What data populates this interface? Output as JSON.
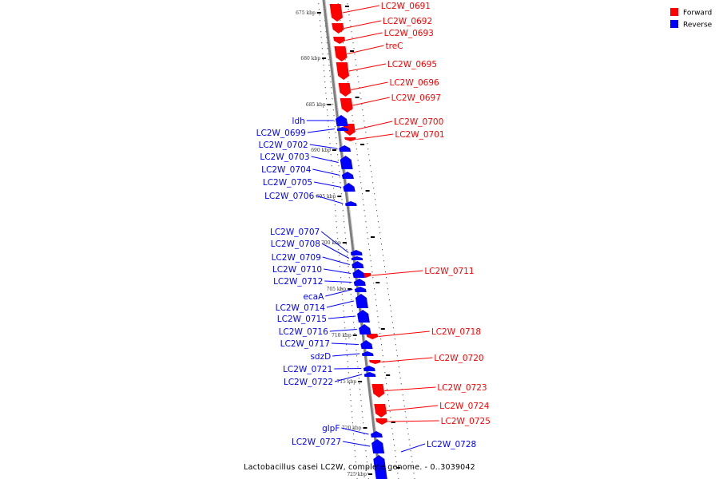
{
  "colors": {
    "forward": "#ff0000",
    "reverse": "#0000ff",
    "backbone": "#7f7f7f",
    "text": "#000000"
  },
  "legend": {
    "items": [
      {
        "label": "Forward",
        "color": "#ff0000"
      },
      {
        "label": "Reverse",
        "color": "#0000ff"
      }
    ]
  },
  "footer": {
    "title": "Lactobacillus casei LC2W, complete genome. - 0..3039042"
  },
  "scale_ticks": [
    "675 kbp",
    "680 kbp",
    "685 kbp",
    "690 kbp",
    "695 kbp",
    "700 kbp",
    "705 kbp",
    "710 kbp",
    "715 kbp",
    "720 kbp",
    "725 kbp"
  ],
  "genes": {
    "forward": [
      "LC2W_0691",
      "LC2W_0692",
      "LC2W_0693",
      "treC",
      "LC2W_0695",
      "LC2W_0696",
      "LC2W_0697",
      "LC2W_0700",
      "LC2W_0701",
      "LC2W_0711",
      "LC2W_0718",
      "LC2W_0720",
      "LC2W_0723",
      "LC2W_0724",
      "LC2W_0725"
    ],
    "reverse": [
      "ldh",
      "LC2W_0699",
      "LC2W_0702",
      "LC2W_0703",
      "LC2W_0704",
      "LC2W_0705",
      "LC2W_0706",
      "LC2W_0707",
      "LC2W_0708",
      "LC2W_0709",
      "LC2W_0710",
      "LC2W_0712",
      "ecaA",
      "LC2W_0714",
      "LC2W_0715",
      "LC2W_0716",
      "LC2W_0717",
      "sdzD",
      "LC2W_0721",
      "LC2W_0722",
      "glpF",
      "LC2W_0727",
      "LC2W_0728"
    ]
  }
}
